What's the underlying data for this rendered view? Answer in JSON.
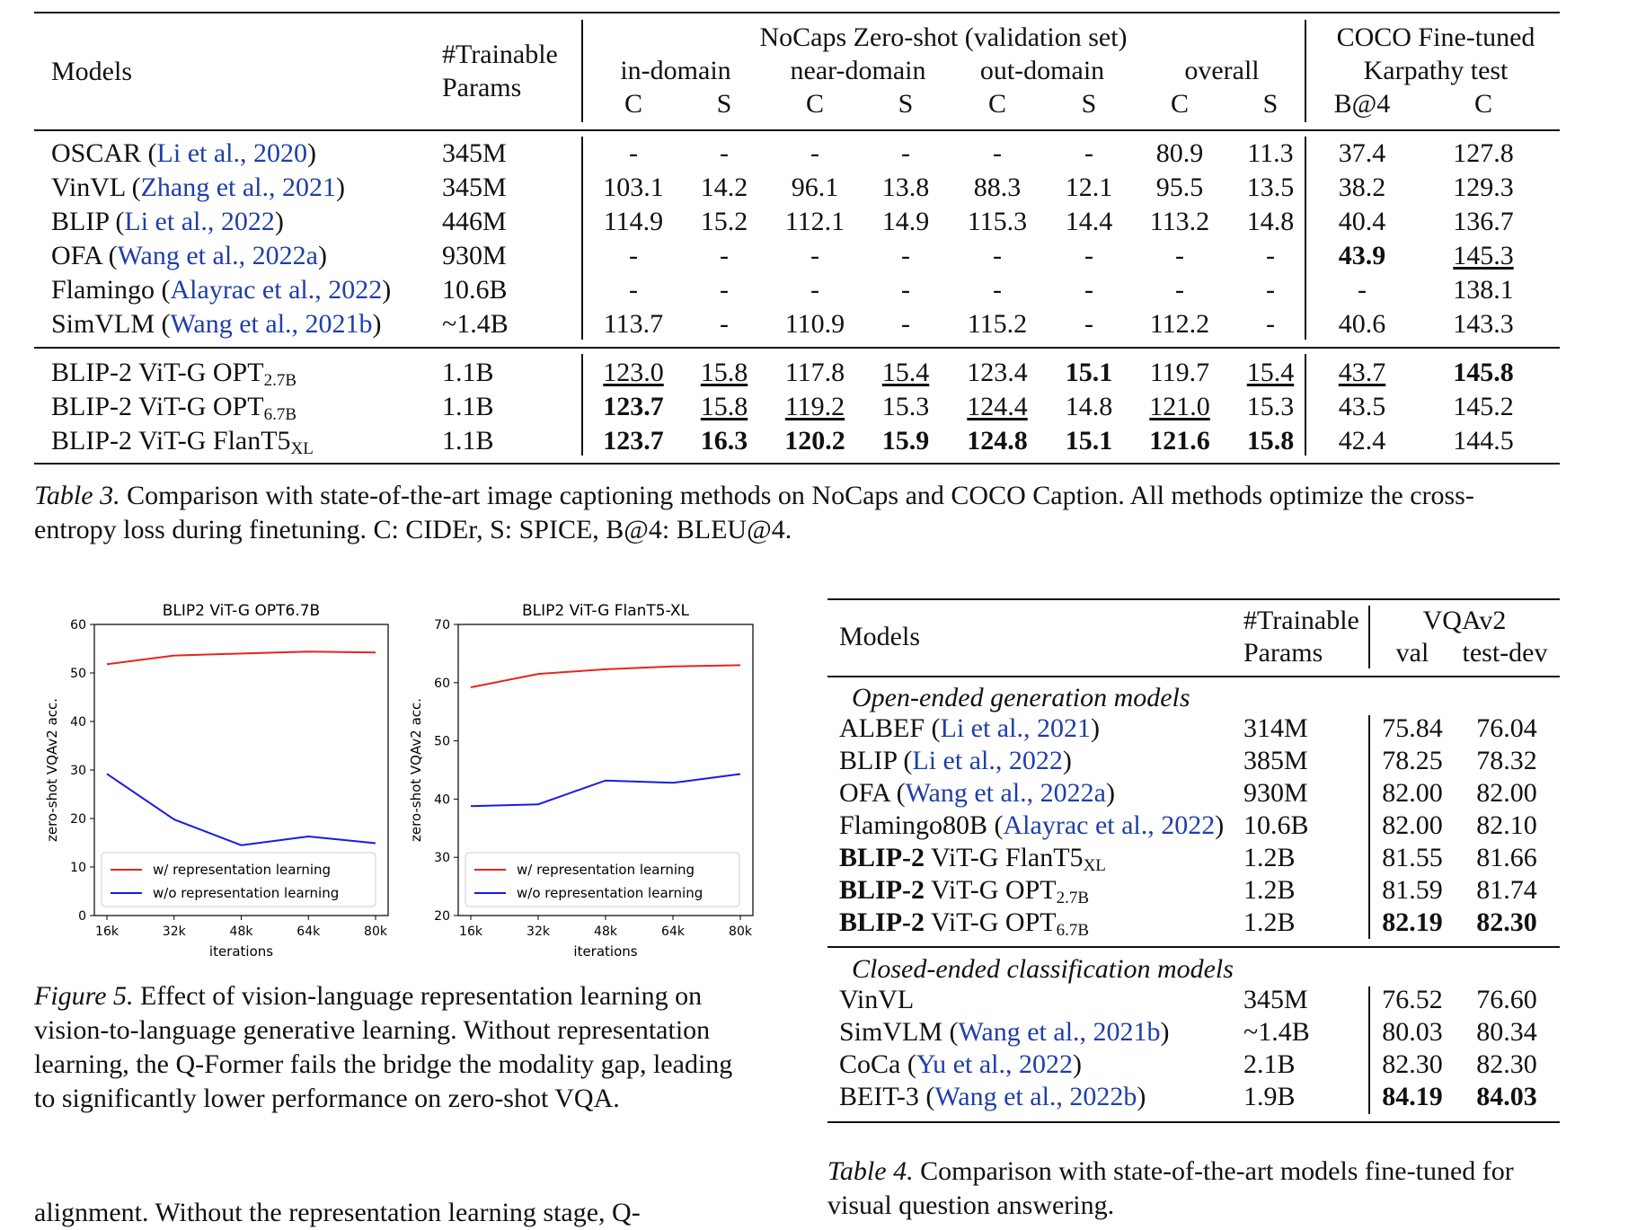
{
  "table3": {
    "header": {
      "models": "Models",
      "params1": "#Trainable",
      "params2": "Params",
      "nocaps": "NoCaps Zero-shot (validation set)",
      "coco1": "COCO Fine-tuned",
      "coco2": "Karpathy test",
      "groups": [
        "in-domain",
        "near-domain",
        "out-domain",
        "overall"
      ],
      "sub": [
        "C",
        "S",
        "C",
        "S",
        "C",
        "S",
        "C",
        "S",
        "B@4",
        "C"
      ]
    },
    "rows": [
      {
        "name": "OSCAR (",
        "cite": "Li et al., 2020",
        "close": ")",
        "params": "345M",
        "vals": [
          "-",
          "-",
          "-",
          "-",
          "-",
          "-",
          "80.9",
          "11.3",
          "37.4",
          "127.8"
        ]
      },
      {
        "name": "VinVL (",
        "cite": "Zhang et al., 2021",
        "close": ")",
        "params": "345M",
        "vals": [
          "103.1",
          "14.2",
          "96.1",
          "13.8",
          "88.3",
          "12.1",
          "95.5",
          "13.5",
          "38.2",
          "129.3"
        ]
      },
      {
        "name": "BLIP (",
        "cite": "Li et al., 2022",
        "close": ")",
        "params": "446M",
        "vals": [
          "114.9",
          "15.2",
          "112.1",
          "14.9",
          "115.3",
          "14.4",
          "113.2",
          "14.8",
          "40.4",
          "136.7"
        ]
      },
      {
        "name": "OFA (",
        "cite": "Wang et al., 2022a",
        "close": ")",
        "params": "930M",
        "vals": [
          "-",
          "-",
          "-",
          "-",
          "-",
          "-",
          "-",
          "-",
          "43.9",
          "145.3"
        ]
      },
      {
        "name": "Flamingo (",
        "cite": "Alayrac et al., 2022",
        "close": ")",
        "params": "10.6B",
        "vals": [
          "-",
          "-",
          "-",
          "-",
          "-",
          "-",
          "-",
          "-",
          "-",
          "138.1"
        ]
      },
      {
        "name": "SimVLM (",
        "cite": "Wang et al., 2021b",
        "close": ")",
        "params": "~1.4B",
        "vals": [
          "113.7",
          "-",
          "110.9",
          "-",
          "115.2",
          "-",
          "112.2",
          "-",
          "40.6",
          "143.3"
        ]
      }
    ],
    "blip2_rows": [
      {
        "name": "BLIP-2 ViT-G OPT",
        "sub": "2.7B",
        "params": "1.1B",
        "vals": [
          "123.0",
          "15.8",
          "117.8",
          "15.4",
          "123.4",
          "15.1",
          "119.7",
          "15.4",
          "43.7",
          "145.8"
        ]
      },
      {
        "name": "BLIP-2 ViT-G OPT",
        "sub": "6.7B",
        "params": "1.1B",
        "vals": [
          "123.7",
          "15.8",
          "119.2",
          "15.3",
          "124.4",
          "14.8",
          "121.0",
          "15.3",
          "43.5",
          "145.2"
        ]
      },
      {
        "name": "BLIP-2 ViT-G FlanT5",
        "sub": "XL",
        "params": "1.1B",
        "vals": [
          "123.7",
          "16.3",
          "120.2",
          "15.9",
          "124.8",
          "15.1",
          "121.6",
          "15.8",
          "42.4",
          "144.5"
        ]
      }
    ],
    "caption_label": "Table 3.",
    "caption_line1": " Comparison with state-of-the-art image captioning methods on NoCaps and COCO Caption. All methods optimize the cross-",
    "caption_line2": "entropy loss during finetuning. C: CIDEr, S: SPICE, B@4: BLEU@4."
  },
  "figure5": {
    "caption_label": "Figure 5.",
    "caption_line1": " Effect of vision-language representation learning on",
    "caption_line2": "vision-to-language generative learning.  Without representation",
    "caption_line3": "learning, the Q-Former fails the bridge the modality gap, leading",
    "caption_line4": "to significantly lower performance on zero-shot VQA."
  },
  "chart_data": [
    {
      "type": "line",
      "title": "BLIP2 ViT-G OPT6.7B",
      "xlabel": "iterations",
      "ylabel": "zero-shot VQAv2 acc.",
      "categories": [
        "16k",
        "32k",
        "48k",
        "64k",
        "80k"
      ],
      "ylim": [
        0,
        60
      ],
      "yticks": [
        "0",
        "10",
        "20",
        "30",
        "40",
        "50",
        "60"
      ],
      "series": [
        {
          "name": "w/ representation learning",
          "color": "#e8231f",
          "values": [
            51.8,
            53.6,
            54.0,
            54.4,
            54.2
          ]
        },
        {
          "name": "w/o representation learning",
          "color": "#1a1ae6",
          "values": [
            29.2,
            19.8,
            14.5,
            16.3,
            14.9
          ]
        }
      ],
      "legend": "bottom-left"
    },
    {
      "type": "line",
      "title": "BLIP2 ViT-G FlanT5-XL",
      "xlabel": "iterations",
      "ylabel": "zero-shot VQAv2 acc.",
      "categories": [
        "16k",
        "32k",
        "48k",
        "64k",
        "80k"
      ],
      "ylim": [
        20,
        70
      ],
      "yticks": [
        "20",
        "30",
        "40",
        "50",
        "60",
        "70"
      ],
      "series": [
        {
          "name": "w/ representation learning",
          "color": "#e8231f",
          "values": [
            59.2,
            61.5,
            62.3,
            62.8,
            63.0
          ]
        },
        {
          "name": "w/o representation learning",
          "color": "#1a1ae6",
          "values": [
            38.8,
            39.1,
            43.2,
            42.8,
            44.3
          ]
        }
      ],
      "legend": "bottom-left"
    }
  ],
  "table4": {
    "header": {
      "models": "Models",
      "params1": "#Trainable",
      "params2": "Params",
      "vqa": "VQAv2",
      "val": "val",
      "testdev": "test-dev"
    },
    "section1": "Open-ended generation models",
    "section2": "Closed-ended classification models",
    "open_rows": [
      {
        "name": "ALBEF (",
        "cite": "Li et al., 2021",
        "close": ")",
        "params": "314M",
        "val": "75.84",
        "test": "76.04"
      },
      {
        "name": "BLIP (",
        "cite": "Li et al., 2022",
        "close": ")",
        "params": "385M",
        "val": "78.25",
        "test": "78.32"
      },
      {
        "name": "OFA (",
        "cite": "Wang et al., 2022a",
        "close": ")",
        "params": "930M",
        "val": "82.00",
        "test": "82.00"
      },
      {
        "name": "Flamingo80B (",
        "cite": "Alayrac et al., 2022",
        "close": ")",
        "params": "10.6B",
        "val": "82.00",
        "test": "82.10"
      }
    ],
    "blip2_rows": [
      {
        "bold": "BLIP-2",
        "rest": " ViT-G FlanT5",
        "sub": "XL",
        "params": "1.2B",
        "val": "81.55",
        "test": "81.66"
      },
      {
        "bold": "BLIP-2",
        "rest": " ViT-G OPT",
        "sub": "2.7B",
        "params": "1.2B",
        "val": "81.59",
        "test": "81.74"
      },
      {
        "bold": "BLIP-2",
        "rest": " ViT-G OPT",
        "sub": "6.7B",
        "params": "1.2B",
        "val": "82.19",
        "test": "82.30"
      }
    ],
    "closed_rows": [
      {
        "name": "VinVL",
        "cite": "",
        "close": "",
        "params": "345M",
        "val": "76.52",
        "test": "76.60"
      },
      {
        "name": "SimVLM (",
        "cite": "Wang et al., 2021b",
        "close": ")",
        "params": "~1.4B",
        "val": "80.03",
        "test": "80.34"
      },
      {
        "name": "CoCa (",
        "cite": "Yu et al., 2022",
        "close": ")",
        "params": "2.1B",
        "val": "82.30",
        "test": "82.30"
      },
      {
        "name": "BEIT-3 (",
        "cite": "Wang et al., 2022b",
        "close": ")",
        "params": "1.9B",
        "val": "84.19",
        "test": "84.03"
      }
    ],
    "caption_label": "Table 4.",
    "caption_line1": " Comparison with state-of-the-art models fine-tuned for",
    "caption_line2": "visual question answering."
  },
  "body_text_cut": "alignment.  Without the representation learning stage, Q-"
}
